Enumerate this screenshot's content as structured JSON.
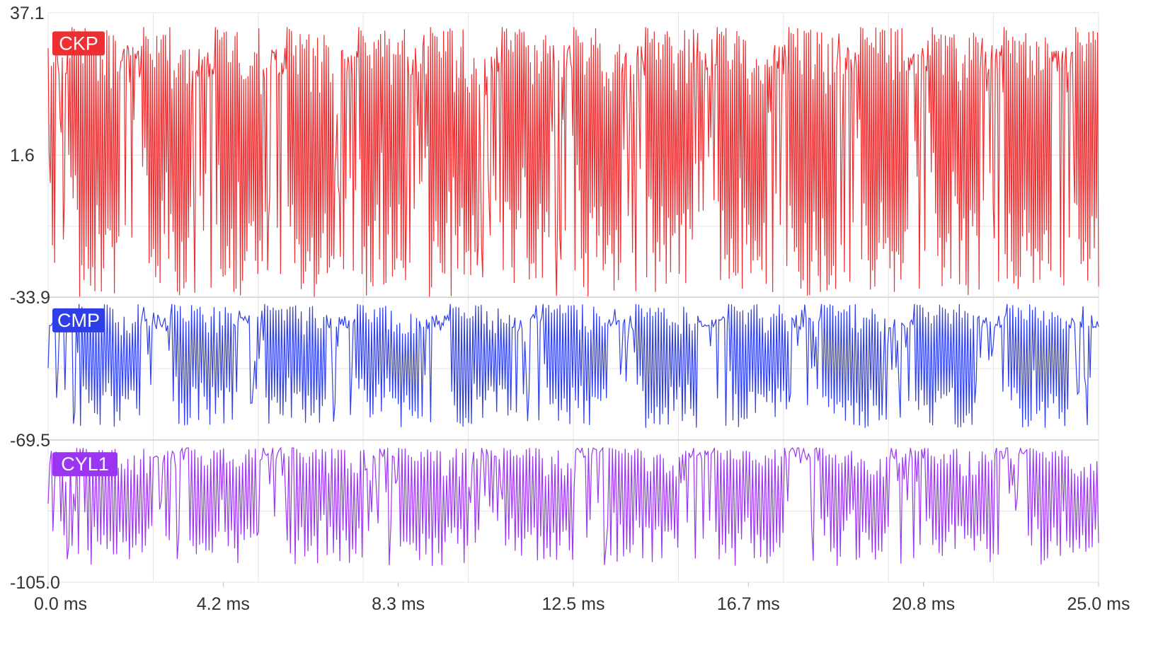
{
  "chart_data": {
    "type": "line",
    "xlabel": "",
    "ylabel": "",
    "x_range": [
      0,
      25
    ],
    "x_unit": "ms",
    "x_tick_labels": [
      "0.0 ms",
      "4.2 ms",
      "8.3 ms",
      "12.5 ms",
      "16.7 ms",
      "20.8 ms",
      "25.0 ms"
    ],
    "y_range": [
      -105.0,
      37.1
    ],
    "y_tick_labels": [
      "37.1",
      "1.6",
      "-33.9",
      "-69.5",
      "-105.0"
    ],
    "grid": true,
    "series": [
      {
        "name": "CKP",
        "color": "#ee2e31",
        "range": [
          -33.9,
          33.5
        ],
        "levels": [
          25.0,
          -20.0
        ],
        "segments": 44,
        "points_per_segment": 22
      },
      {
        "name": "CMP",
        "color": "#2f3fe8",
        "range": [
          -66.5,
          -35.6
        ],
        "levels": [
          -40.0,
          -60.0
        ],
        "segments": 34,
        "points_per_segment": 22
      },
      {
        "name": "CYL1",
        "color": "#9b35f2",
        "range": [
          -101.0,
          -71.5
        ],
        "levels": [
          -72.8,
          -97.0
        ],
        "segments": 30,
        "points_per_segment": 22
      }
    ]
  }
}
